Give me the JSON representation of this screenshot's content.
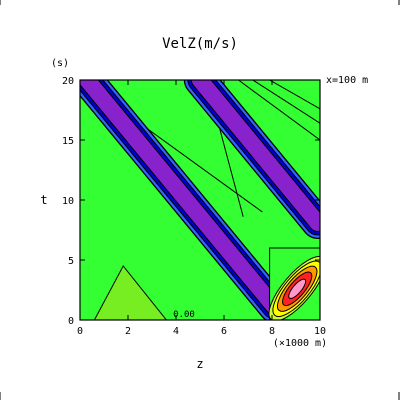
{
  "chart_data": {
    "type": "heatmap",
    "title": "VelZ(m/s)",
    "xlabel": "z",
    "xunit": "(×1000 m)",
    "ylabel": "t",
    "yunit": "(s)",
    "annotation": "x=100 m",
    "contour_label": "0.00",
    "xlim": [
      0,
      10
    ],
    "ylim": [
      0,
      20
    ],
    "xticks": [
      0,
      2,
      4,
      6,
      8,
      10
    ],
    "yticks": [
      0,
      5,
      10,
      15,
      20
    ],
    "xtick_labels": [
      "0",
      "2",
      "4",
      "6",
      "8",
      "10"
    ],
    "ytick_labels": [
      "0",
      "5",
      "10",
      "15",
      "20"
    ],
    "background_color": "#33ff33",
    "features": [
      {
        "name": "trough-band-1",
        "start": [
          0.3,
          20
        ],
        "end": [
          8.1,
          1.1
        ],
        "width": 0.75,
        "color": "#8822cc"
      },
      {
        "name": "trough-band-2",
        "start": [
          5.0,
          20
        ],
        "end": [
          9.9,
          8.1
        ],
        "width": 0.75,
        "color": "#8822cc"
      },
      {
        "name": "crest-cell",
        "center": [
          9.05,
          2.6
        ],
        "extent": [
          0.6,
          2.1
        ],
        "color": "#ff2222"
      }
    ]
  }
}
